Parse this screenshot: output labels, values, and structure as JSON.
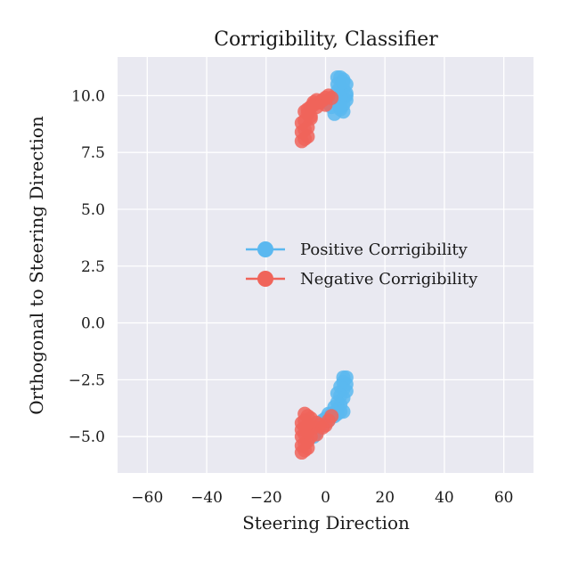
{
  "colors": {
    "positive": "#5bb8f0",
    "negative": "#f0645a",
    "plot_bg": "#e9e9f1",
    "grid": "#ffffff"
  },
  "chart_data": {
    "type": "scatter",
    "title": "Corrigibility, Classifier",
    "xlabel": "Steering Direction",
    "ylabel": "Orthogonal to Steering Direction",
    "xlim": [
      -70,
      70
    ],
    "ylim": [
      -6.6,
      11.7
    ],
    "xticks": [
      -60,
      -40,
      -20,
      0,
      20,
      40,
      60
    ],
    "xtick_labels": [
      "−60",
      "−40",
      "−20",
      "0",
      "20",
      "40",
      "60"
    ],
    "yticks": [
      -5.0,
      -2.5,
      0.0,
      2.5,
      5.0,
      7.5,
      10.0
    ],
    "ytick_labels": [
      "−5.0",
      "−2.5",
      "0.0",
      "2.5",
      "5.0",
      "7.5",
      "10.0"
    ],
    "grid": true,
    "legend_position": "center-right",
    "series": [
      {
        "name": "Positive Corrigibility",
        "color": "#5bb8f0",
        "x": [
          4,
          5,
          6,
          7,
          4,
          5,
          6,
          7,
          3,
          5,
          6,
          7,
          4,
          6,
          7,
          2,
          5,
          6,
          3,
          0,
          5,
          4,
          6,
          5,
          6,
          7,
          6,
          7,
          5,
          6,
          7,
          4,
          5,
          6,
          4,
          5,
          3,
          4,
          5,
          6,
          2,
          3,
          4,
          0,
          1,
          2,
          -1,
          0,
          1,
          -2,
          -3,
          -4
        ],
        "y": [
          10.8,
          10.8,
          10.7,
          10.5,
          10.5,
          10.4,
          10.3,
          10.1,
          9.8,
          10.0,
          9.9,
          10.0,
          9.7,
          9.6,
          9.8,
          9.5,
          9.4,
          9.3,
          9.2,
          9.7,
          9.9,
          10.2,
          10.6,
          9.5,
          -2.4,
          -2.4,
          -2.6,
          -2.7,
          -2.8,
          -2.9,
          -3.0,
          -3.1,
          -3.2,
          -3.3,
          -3.5,
          -3.6,
          -3.7,
          -3.8,
          -3.9,
          -3.9,
          -4.0,
          -4.1,
          -4.0,
          -4.2,
          -4.0,
          -4.1,
          -4.3,
          -4.4,
          -4.3,
          -4.6,
          -4.8,
          -5.0
        ]
      },
      {
        "name": "Negative Corrigibility",
        "color": "#f0645a",
        "x": [
          -8,
          -7,
          -6,
          -8,
          -7,
          -6,
          -8,
          -7,
          -5,
          -6,
          -7,
          -6,
          -5,
          -4,
          -4,
          -3,
          -2,
          -1,
          0,
          1,
          -5,
          -3,
          0,
          2,
          -8,
          -7,
          -6,
          -8,
          -7,
          -6,
          -8,
          -7,
          -6,
          -8,
          -7,
          -6,
          -8,
          -7,
          -5,
          -6,
          -7,
          -4,
          -3,
          -2,
          -1,
          0,
          1,
          -5,
          -3,
          2
        ],
        "y": [
          8.0,
          8.1,
          8.2,
          8.4,
          8.5,
          8.6,
          8.8,
          8.9,
          9.0,
          9.2,
          9.3,
          9.4,
          9.5,
          9.6,
          9.7,
          9.8,
          9.7,
          9.8,
          9.9,
          10.0,
          9.1,
          9.5,
          9.6,
          9.9,
          -5.7,
          -5.6,
          -5.5,
          -5.4,
          -5.3,
          -5.2,
          -5.0,
          -4.9,
          -4.8,
          -4.7,
          -4.6,
          -4.5,
          -4.4,
          -4.3,
          -4.2,
          -4.1,
          -4.0,
          -4.6,
          -4.4,
          -4.5,
          -4.6,
          -4.5,
          -4.3,
          -5.0,
          -4.9,
          -4.1
        ]
      }
    ]
  }
}
